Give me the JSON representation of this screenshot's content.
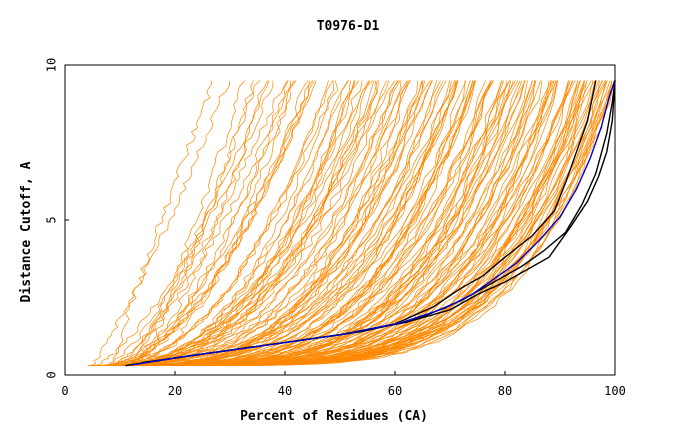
{
  "chart_data": {
    "type": "line",
    "title": "T0976-D1",
    "xlabel": "Percent of Residues (CA)",
    "ylabel": "Distance Cutoff, A",
    "xlim": [
      0,
      100
    ],
    "ylim": [
      0,
      10
    ],
    "xticks": [
      "0",
      "20",
      "40",
      "60",
      "80",
      "100"
    ],
    "yticks": [
      "0",
      "5",
      "10"
    ],
    "grid": false,
    "legend": "none",
    "colors": {
      "background_series": "#ff8800",
      "black_series": "#000000",
      "blue_series": "#0000cc",
      "axis": "#000000"
    },
    "highlighted_series": [
      {
        "color": "black",
        "points": [
          [
            11,
            0.3
          ],
          [
            20,
            0.55
          ],
          [
            30,
            0.8
          ],
          [
            40,
            1.05
          ],
          [
            50,
            1.3
          ],
          [
            60,
            1.65
          ],
          [
            67,
            2.2
          ],
          [
            72,
            2.8
          ],
          [
            76,
            3.2
          ],
          [
            80,
            3.8
          ],
          [
            85,
            4.5
          ],
          [
            89,
            5.3
          ],
          [
            91,
            6.2
          ],
          [
            93,
            7.2
          ],
          [
            95,
            8.2
          ],
          [
            96.5,
            9.5
          ]
        ]
      },
      {
        "color": "black",
        "points": [
          [
            13,
            0.35
          ],
          [
            22,
            0.6
          ],
          [
            32,
            0.85
          ],
          [
            42,
            1.1
          ],
          [
            52,
            1.35
          ],
          [
            62,
            1.7
          ],
          [
            70,
            2.1
          ],
          [
            75,
            2.6
          ],
          [
            80,
            3.0
          ],
          [
            84,
            3.4
          ],
          [
            88,
            3.8
          ],
          [
            92,
            4.8
          ],
          [
            95,
            5.6
          ],
          [
            97,
            6.4
          ],
          [
            98.5,
            7.2
          ],
          [
            99.5,
            8.2
          ],
          [
            100,
            9.5
          ]
        ]
      },
      {
        "color": "black",
        "points": [
          [
            14,
            0.4
          ],
          [
            24,
            0.65
          ],
          [
            34,
            0.9
          ],
          [
            44,
            1.15
          ],
          [
            54,
            1.4
          ],
          [
            64,
            1.8
          ],
          [
            72,
            2.4
          ],
          [
            78,
            3.0
          ],
          [
            83,
            3.5
          ],
          [
            87,
            4.0
          ],
          [
            91,
            4.6
          ],
          [
            94,
            5.5
          ],
          [
            96.5,
            6.5
          ],
          [
            98.5,
            7.8
          ],
          [
            99.5,
            8.8
          ],
          [
            100,
            9.5
          ]
        ]
      },
      {
        "color": "blue",
        "points": [
          [
            12,
            0.32
          ],
          [
            21,
            0.58
          ],
          [
            31,
            0.82
          ],
          [
            41,
            1.07
          ],
          [
            51,
            1.32
          ],
          [
            61,
            1.68
          ],
          [
            69,
            2.15
          ],
          [
            74,
            2.6
          ],
          [
            78,
            3.1
          ],
          [
            82,
            3.6
          ],
          [
            86,
            4.3
          ],
          [
            90,
            5.1
          ],
          [
            93,
            6.0
          ],
          [
            95.5,
            7.0
          ],
          [
            97.5,
            8.0
          ],
          [
            99,
            9.0
          ],
          [
            100,
            9.5
          ]
        ]
      }
    ],
    "background_series_count": 150,
    "background_series_description": "orange curves spanning from x≈5 to x≈100, ranging from steep (reaching 9.5 at x≈25) to flat (staying below 2 until x≈85)"
  }
}
